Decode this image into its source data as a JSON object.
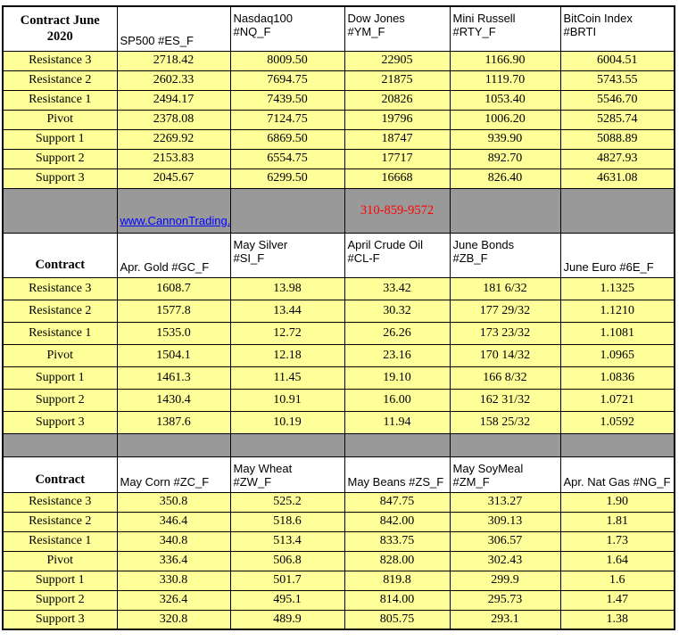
{
  "banner": {
    "link": "www.CannonTrading.com",
    "phone": "310-859-9572"
  },
  "row_labels": [
    "Resistance 3",
    "Resistance 2",
    "Resistance 1",
    "Pivot",
    "Support 1",
    "Support 2",
    "Support 3"
  ],
  "sections": [
    {
      "contract_label": "Contract June 2020",
      "headers": [
        "SP500 #ES_F",
        "Nasdaq100\n#NQ_F",
        "Dow Jones\n#YM_F",
        "Mini Russell\n#RTY_F",
        "BitCoin Index\n#BRTI"
      ],
      "rows": [
        [
          "2718.42",
          "8009.50",
          "22905",
          "1166.90",
          "6004.51"
        ],
        [
          "2602.33",
          "7694.75",
          "21875",
          "1119.70",
          "5743.55"
        ],
        [
          "2494.17",
          "7439.50",
          "20826",
          "1053.40",
          "5546.70"
        ],
        [
          "2378.08",
          "7124.75",
          "19796",
          "1006.20",
          "5285.74"
        ],
        [
          "2269.92",
          "6869.50",
          "18747",
          "939.90",
          "5088.89"
        ],
        [
          "2153.83",
          "6554.75",
          "17717",
          "892.70",
          "4827.93"
        ],
        [
          "2045.67",
          "6299.50",
          "16668",
          "826.40",
          "4631.08"
        ]
      ]
    },
    {
      "contract_label": "Contract",
      "headers": [
        "Apr. Gold #GC_F",
        "May Silver\n#SI_F",
        "April Crude Oil\n#CL-F",
        "June Bonds\n#ZB_F",
        "June  Euro #6E_F"
      ],
      "rows": [
        [
          "1608.7",
          "13.98",
          "33.42",
          "181  6/32",
          "1.1325"
        ],
        [
          "1577.8",
          "13.44",
          "30.32",
          "177 29/32",
          "1.1210"
        ],
        [
          "1535.0",
          "12.72",
          "26.26",
          "173 23/32",
          "1.1081"
        ],
        [
          "1504.1",
          "12.18",
          "23.16",
          "170 14/32",
          "1.0965"
        ],
        [
          "1461.3",
          "11.45",
          "19.10",
          "166  8/32",
          "1.0836"
        ],
        [
          "1430.4",
          "10.91",
          "16.00",
          "162 31/32",
          "1.0721"
        ],
        [
          "1387.6",
          "10.19",
          "11.94",
          "158 25/32",
          "1.0592"
        ]
      ]
    },
    {
      "contract_label": "Contract",
      "headers": [
        "May Corn #ZC_F",
        "May  Wheat\n#ZW_F",
        "May Beans #ZS_F",
        "May  SoyMeal\n#ZM_F",
        "Apr. Nat Gas #NG_F"
      ],
      "rows": [
        [
          "350.8",
          "525.2",
          "847.75",
          "313.27",
          "1.90"
        ],
        [
          "346.4",
          "518.6",
          "842.00",
          "309.13",
          "1.81"
        ],
        [
          "340.8",
          "513.4",
          "833.75",
          "306.57",
          "1.73"
        ],
        [
          "336.4",
          "506.8",
          "828.00",
          "302.43",
          "1.64"
        ],
        [
          "330.8",
          "501.7",
          "819.8",
          "299.9",
          "1.6"
        ],
        [
          "326.4",
          "495.1",
          "814.00",
          "295.73",
          "1.47"
        ],
        [
          "320.8",
          "489.9",
          "805.75",
          "293.1",
          "1.38"
        ]
      ]
    }
  ],
  "colors": {
    "row_yellow": "#FFFF99",
    "separator_gray": "#999999",
    "link_blue": "#0000FF",
    "phone_red": "#FF0000",
    "border": "#000000"
  }
}
